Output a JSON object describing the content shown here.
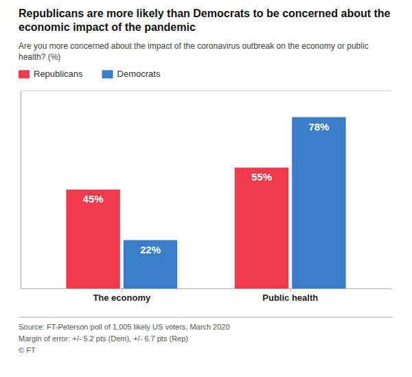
{
  "chart_data": {
    "type": "bar",
    "title": "Republicans are more likely than Democrats to be concerned about the\neconomic impact of the pandemic",
    "subtitle": "Are you more concerned about the impact of the coronavirus outbreak on the economy or public\nhealth? (%)",
    "categories": [
      "The economy",
      "Public health"
    ],
    "series": [
      {
        "name": "Republicans",
        "color": "#EE3A4C",
        "values": [
          45,
          55
        ],
        "value_labels": [
          "45%",
          "55%"
        ]
      },
      {
        "name": "Democrats",
        "color": "#3A7DC9",
        "values": [
          22,
          78
        ],
        "value_labels": [
          "22%",
          "78%"
        ]
      }
    ],
    "ylim": [
      0,
      90
    ],
    "tick_labels": "x",
    "data_labels": true,
    "grid": false,
    "legend": "top",
    "annotations": [
      "Source: FT-Peterson poll of 1,005 likely US voters, March 2020",
      "Margin of error: +/- 5.2 pts (Dem), +/- 6.7 pts (Rep)",
      "© FT"
    ]
  }
}
